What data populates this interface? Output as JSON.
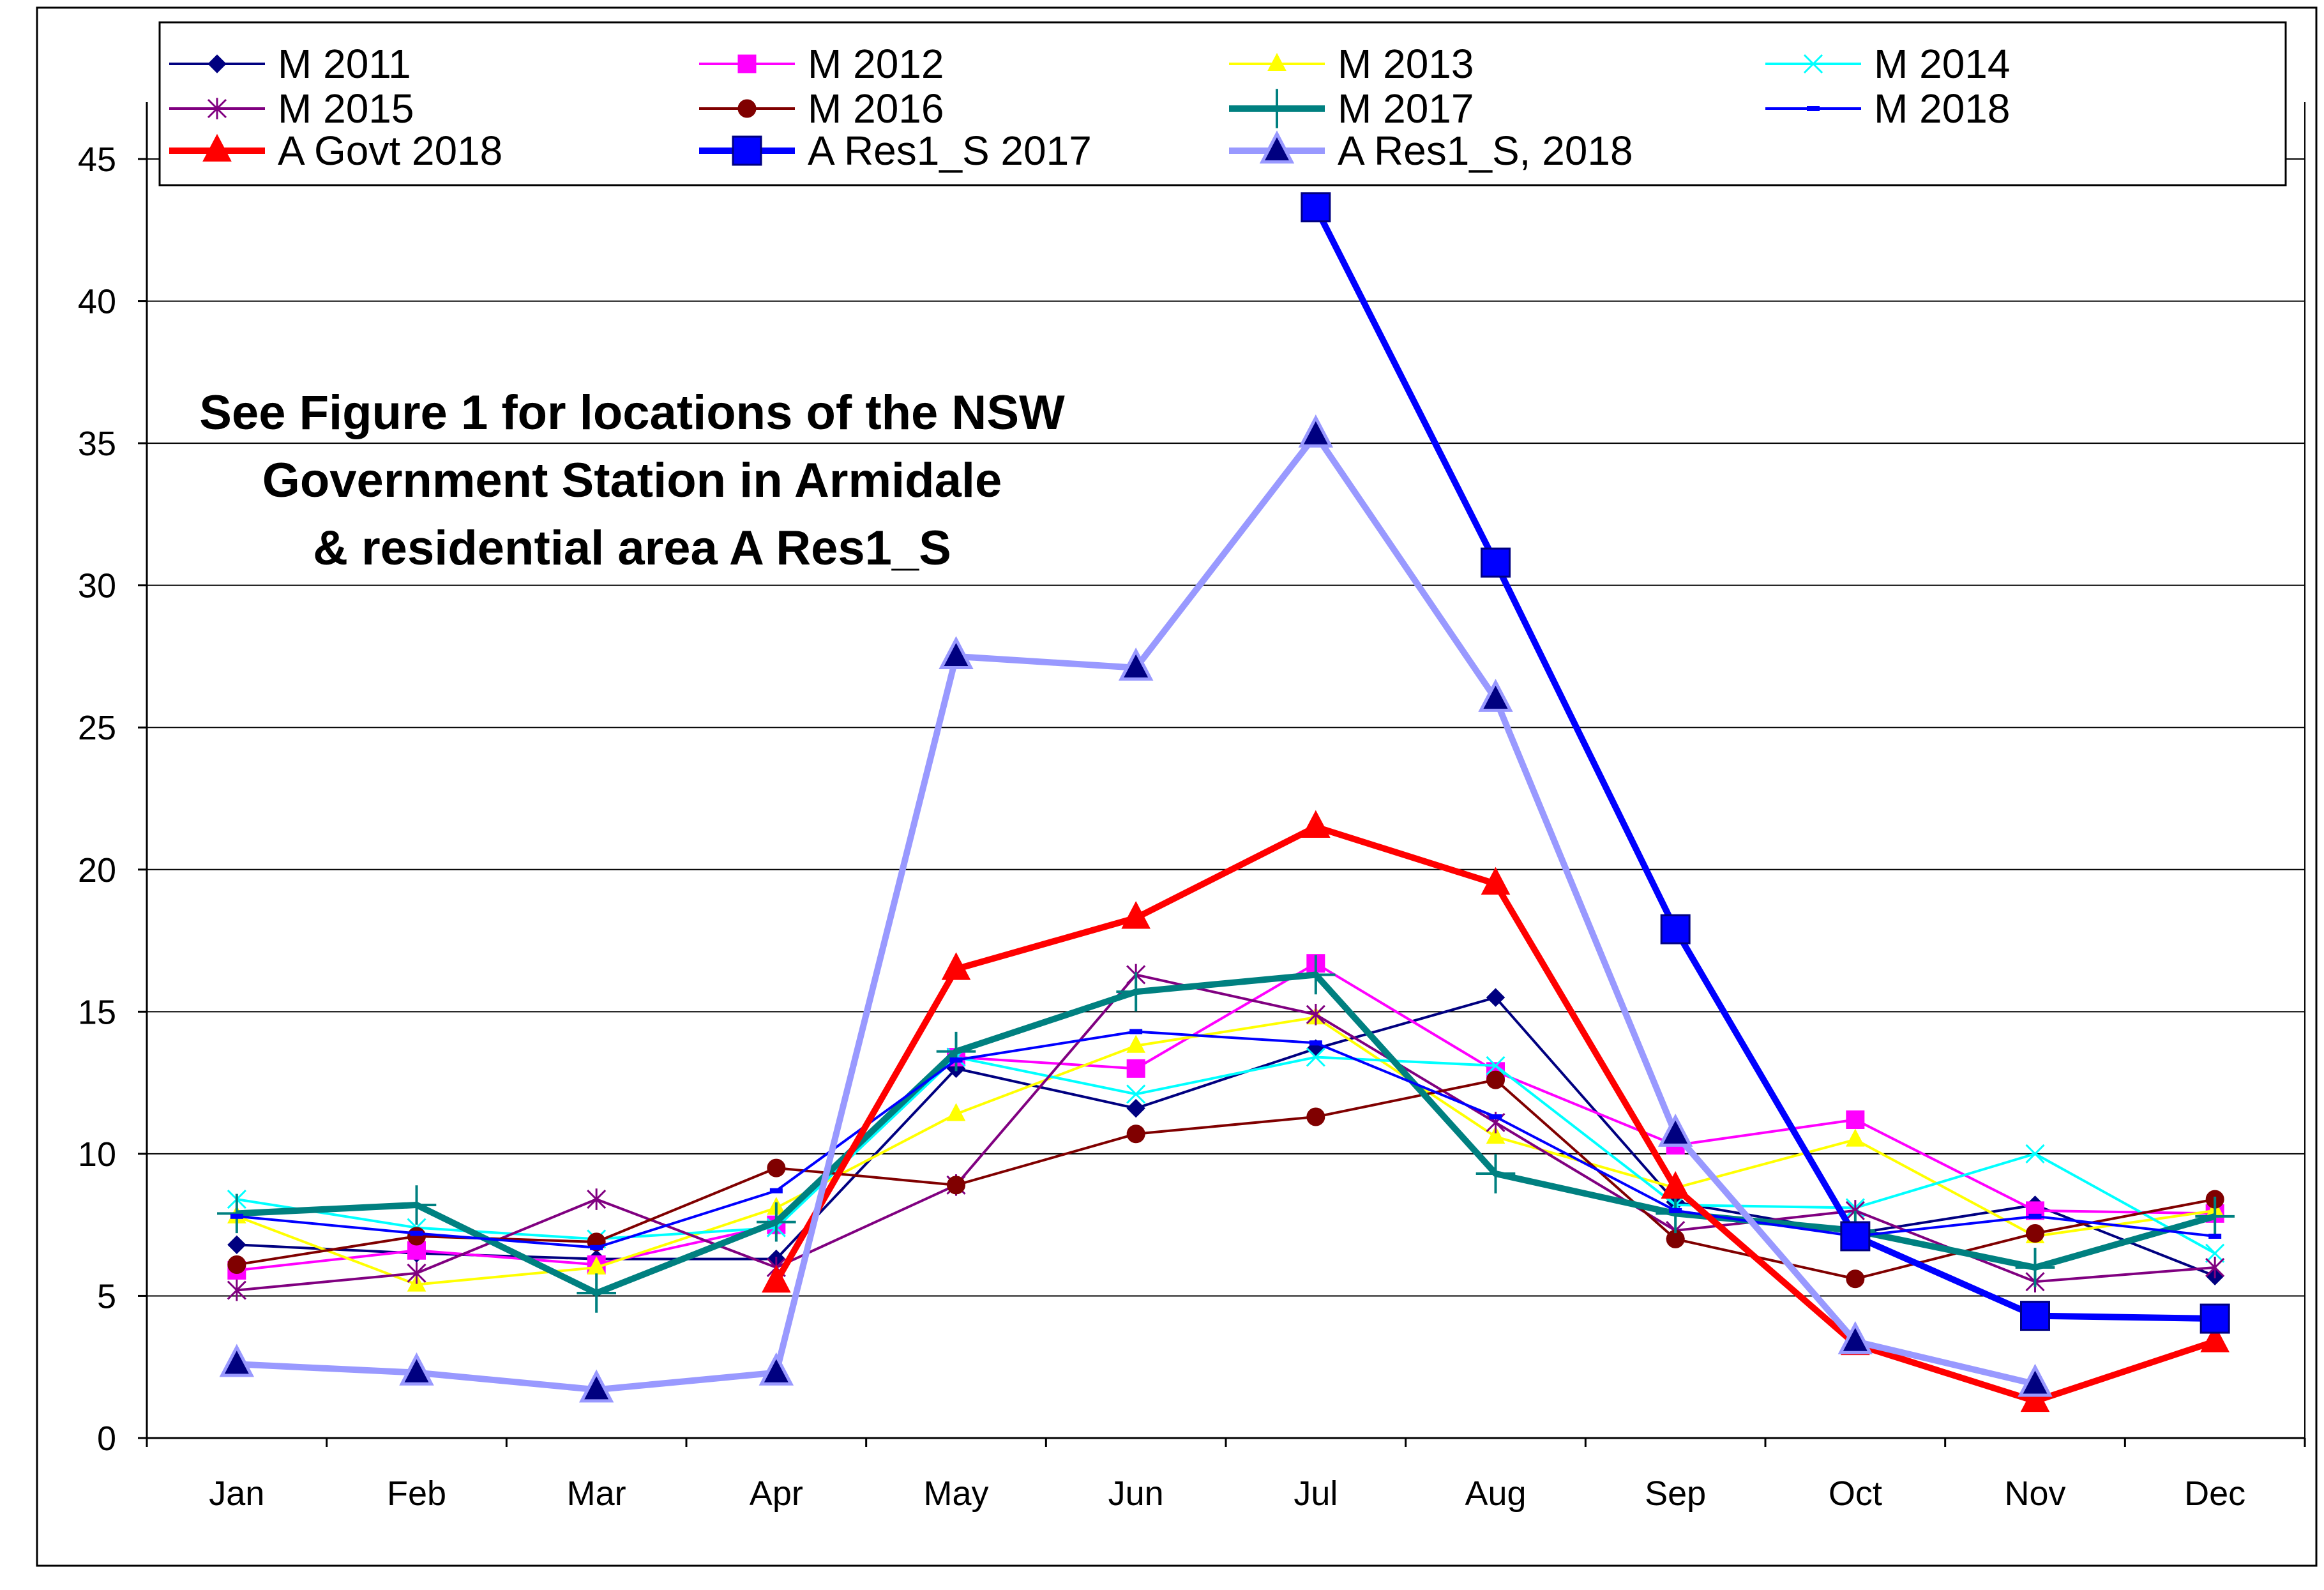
{
  "chart_data": {
    "type": "line",
    "title": "",
    "xlabel": "",
    "ylabel": "",
    "categories": [
      "Jan",
      "Feb",
      "Mar",
      "Apr",
      "May",
      "Jun",
      "Jul",
      "Aug",
      "Sep",
      "Oct",
      "Nov",
      "Dec"
    ],
    "ylim": [
      0,
      47
    ],
    "yticks": [
      0,
      5,
      10,
      15,
      20,
      25,
      30,
      35,
      40,
      45
    ],
    "grid": "horizontal",
    "annotation": [
      "See Figure 1 for locations of the NSW",
      "Government Station in Armidale",
      "& residential area A Res1_S"
    ],
    "series": [
      {
        "name": "M 2011",
        "color": "#000080",
        "marker": "diamond",
        "bold": false,
        "values": [
          6.8,
          6.5,
          6.3,
          6.3,
          13.0,
          11.6,
          13.7,
          15.5,
          8.3,
          7.2,
          8.2,
          5.7
        ]
      },
      {
        "name": "M 2012",
        "color": "#ff00ff",
        "marker": "square",
        "bold": false,
        "values": [
          5.9,
          6.6,
          6.1,
          7.5,
          13.4,
          13.0,
          16.7,
          12.9,
          10.3,
          11.2,
          8.0,
          7.9
        ]
      },
      {
        "name": "M 2013",
        "color": "#ffff00",
        "marker": "triangle",
        "bold": false,
        "values": [
          7.8,
          5.4,
          6.0,
          8.1,
          11.4,
          13.8,
          14.8,
          10.6,
          8.8,
          10.5,
          7.1,
          8.0
        ]
      },
      {
        "name": "M 2014",
        "color": "#00ffff",
        "marker": "x",
        "bold": false,
        "values": [
          8.4,
          7.4,
          7.0,
          7.4,
          13.4,
          12.1,
          13.4,
          13.1,
          8.2,
          8.1,
          10.0,
          6.5
        ]
      },
      {
        "name": "M 2015",
        "color": "#800080",
        "marker": "star",
        "bold": false,
        "values": [
          5.2,
          5.8,
          8.4,
          6.0,
          8.9,
          16.3,
          14.9,
          11.1,
          7.3,
          8.0,
          5.5,
          6.0
        ]
      },
      {
        "name": "M 2016",
        "color": "#800000",
        "marker": "circle",
        "bold": false,
        "values": [
          6.1,
          7.1,
          6.9,
          9.5,
          8.9,
          10.7,
          11.3,
          12.6,
          7.0,
          5.6,
          7.2,
          8.4
        ]
      },
      {
        "name": "M 2017",
        "color": "#008080",
        "marker": "plus",
        "bold": true,
        "values": [
          7.9,
          8.2,
          5.1,
          7.6,
          13.6,
          15.7,
          16.3,
          9.3,
          7.9,
          7.3,
          6.0,
          7.8
        ]
      },
      {
        "name": "M 2018",
        "color": "#0000ff",
        "marker": "dash",
        "bold": false,
        "values": [
          7.8,
          7.2,
          6.7,
          8.7,
          13.3,
          14.3,
          13.9,
          11.3,
          8.0,
          7.1,
          7.8,
          7.1
        ]
      },
      {
        "name": "A Govt 2018",
        "color": "#ff0000",
        "marker": "triangle",
        "bold": true,
        "values": [
          null,
          null,
          null,
          5.5,
          16.5,
          18.3,
          21.5,
          19.5,
          8.8,
          3.3,
          1.3,
          3.4
        ]
      },
      {
        "name": "A Res1_S 2017",
        "color": "#0000ff",
        "marker": "square",
        "bold": true,
        "values": [
          null,
          null,
          null,
          null,
          null,
          null,
          43.3,
          30.8,
          17.9,
          7.1,
          4.3,
          4.2
        ]
      },
      {
        "name": "A Res1_S, 2018",
        "color": "#9999ff",
        "marker": "triangle-outline",
        "bold": true,
        "values": [
          2.6,
          2.3,
          1.7,
          2.3,
          27.5,
          27.1,
          35.3,
          26.0,
          10.7,
          3.4,
          1.9,
          null
        ]
      }
    ]
  }
}
